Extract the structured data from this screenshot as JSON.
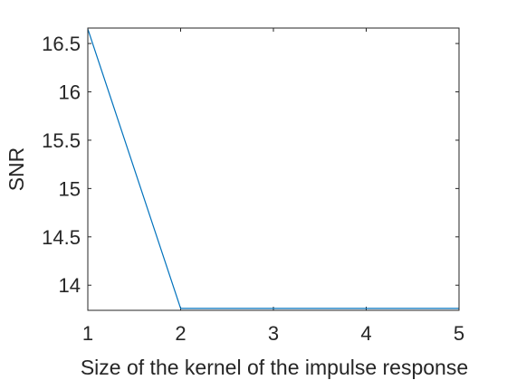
{
  "chart_data": {
    "type": "line",
    "title": "",
    "xlabel": "Size of the kernel of the impulse response",
    "ylabel": "SNR",
    "xlim": [
      1,
      5
    ],
    "ylim": [
      13.74,
      16.66
    ],
    "xticks": [
      1,
      2,
      3,
      4,
      5
    ],
    "xtick_labels": [
      "1",
      "2",
      "3",
      "4",
      "5"
    ],
    "yticks": [
      14,
      14.5,
      15,
      15.5,
      16,
      16.5
    ],
    "ytick_labels": [
      "14",
      "14.5",
      "15",
      "15.5",
      "16",
      "16.5"
    ],
    "grid": false,
    "box": true,
    "series": [
      {
        "color": "#0072BD",
        "x": [
          1,
          2,
          3,
          4,
          5
        ],
        "y": [
          16.65,
          13.76,
          13.76,
          13.76,
          13.76
        ]
      }
    ]
  }
}
